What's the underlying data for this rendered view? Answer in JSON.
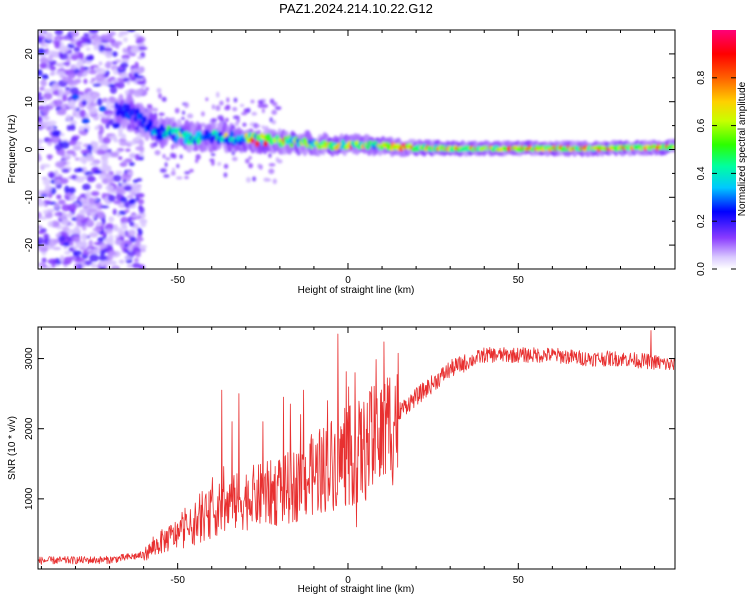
{
  "title": "PAZ1.2024.214.10.22.G12",
  "chart_data": [
    {
      "type": "heatmap",
      "xlabel": "Height of straight line (km)",
      "ylabel": "Frequency (Hz)",
      "xlim": [
        -91,
        96
      ],
      "ylim": [
        -25,
        25
      ],
      "xticks": [
        -50,
        0,
        50
      ],
      "yticks": [
        -20,
        -10,
        0,
        10,
        20
      ],
      "colorbar": {
        "label": "Normalized spectral amplitude",
        "range": [
          0,
          1
        ],
        "ticks": [
          0.0,
          0.2,
          0.4,
          0.6,
          0.8
        ]
      },
      "ridge": {
        "x": [
          -64,
          -55,
          -45,
          -35,
          -25,
          -15,
          -5,
          5,
          15,
          30,
          50,
          70,
          96
        ],
        "y": [
          8,
          3.5,
          2.5,
          2.5,
          2,
          1.5,
          1,
          1,
          0.5,
          0.2,
          0.2,
          0.2,
          0.5
        ]
      }
    },
    {
      "type": "line",
      "xlabel": "Height of straight line (km)",
      "ylabel": "SNR (10 * v/v)",
      "xlim": [
        -91,
        96
      ],
      "ylim": [
        0,
        3450
      ],
      "xticks": [
        -50,
        0,
        50
      ],
      "yticks": [
        1000,
        2000,
        3000
      ],
      "color": "#e83030",
      "trend": {
        "x": [
          -91,
          -70,
          -60,
          -55,
          -50,
          -45,
          -40,
          -35,
          -30,
          -25,
          -20,
          -15,
          -10,
          -5,
          0,
          5,
          10,
          15,
          20,
          25,
          30,
          35,
          40,
          50,
          60,
          70,
          80,
          90,
          96
        ],
        "y": [
          120,
          130,
          200,
          380,
          500,
          620,
          800,
          900,
          1000,
          1050,
          1100,
          1200,
          1350,
          1500,
          1600,
          1700,
          1900,
          2250,
          2450,
          2650,
          2850,
          2950,
          3050,
          3050,
          3050,
          3000,
          3000,
          2950,
          2900
        ]
      },
      "spikes": [
        {
          "x": -37,
          "y": 2550
        },
        {
          "x": -34,
          "y": 2100
        },
        {
          "x": -32,
          "y": 2500
        },
        {
          "x": -25,
          "y": 2100
        },
        {
          "x": -19,
          "y": 2450
        },
        {
          "x": -13,
          "y": 2550
        },
        {
          "x": -6,
          "y": 2400
        },
        {
          "x": -3,
          "y": 3350
        },
        {
          "x": 2,
          "y": 2800
        },
        {
          "x": 2.5,
          "y": 600
        },
        {
          "x": 7,
          "y": 2600
        },
        {
          "x": 89,
          "y": 3400
        }
      ]
    }
  ]
}
